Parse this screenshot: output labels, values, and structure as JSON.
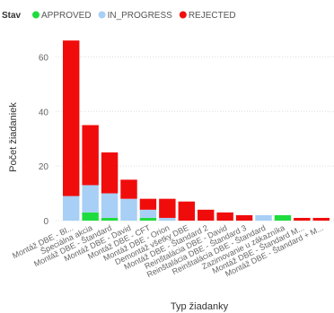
{
  "chart_data": {
    "type": "bar",
    "stacked": true,
    "legend": {
      "title": "Stav",
      "placement": "top-left"
    },
    "xlabel": "Typ žiadanky",
    "ylabel": "Počet žiadaniek",
    "ylim": [
      0,
      70
    ],
    "yticks": [
      0,
      20,
      40,
      60
    ],
    "grid": true,
    "categories": [
      "Montáž DBE - Bl...",
      "Špeciálna akcia",
      "Montáž DBE - Štandard",
      "Montáž DBE - David",
      "Montáž DBE - CFT",
      "Montáž DBE - Orion",
      "Demontáž všetky DBE",
      "Montáž DBE - Štandard 2",
      "Reinštalácia DBE - David",
      "Reinštalácia DBE - Štandard 3",
      "Reinštalácia DBE - Štandard",
      "Zazimovanie u zákazníka",
      "Montáž DBE - Štandard M...",
      "Montáž DBE - Štandard + M..."
    ],
    "series": [
      {
        "name": "APPROVED",
        "color": "#1FDC3E",
        "values": [
          0,
          3,
          1,
          0,
          1,
          0,
          0,
          0,
          0,
          0,
          0,
          2,
          0,
          0
        ]
      },
      {
        "name": "IN_PROGRESS",
        "color": "#A8CFF5",
        "values": [
          9,
          10,
          9,
          8,
          3,
          1,
          0,
          0,
          0,
          0,
          2,
          0,
          0,
          0
        ]
      },
      {
        "name": "REJECTED",
        "color": "#F10C0C",
        "values": [
          57,
          22,
          15,
          7,
          4,
          7,
          7,
          4,
          3,
          2,
          0,
          0,
          1,
          1
        ]
      }
    ]
  }
}
